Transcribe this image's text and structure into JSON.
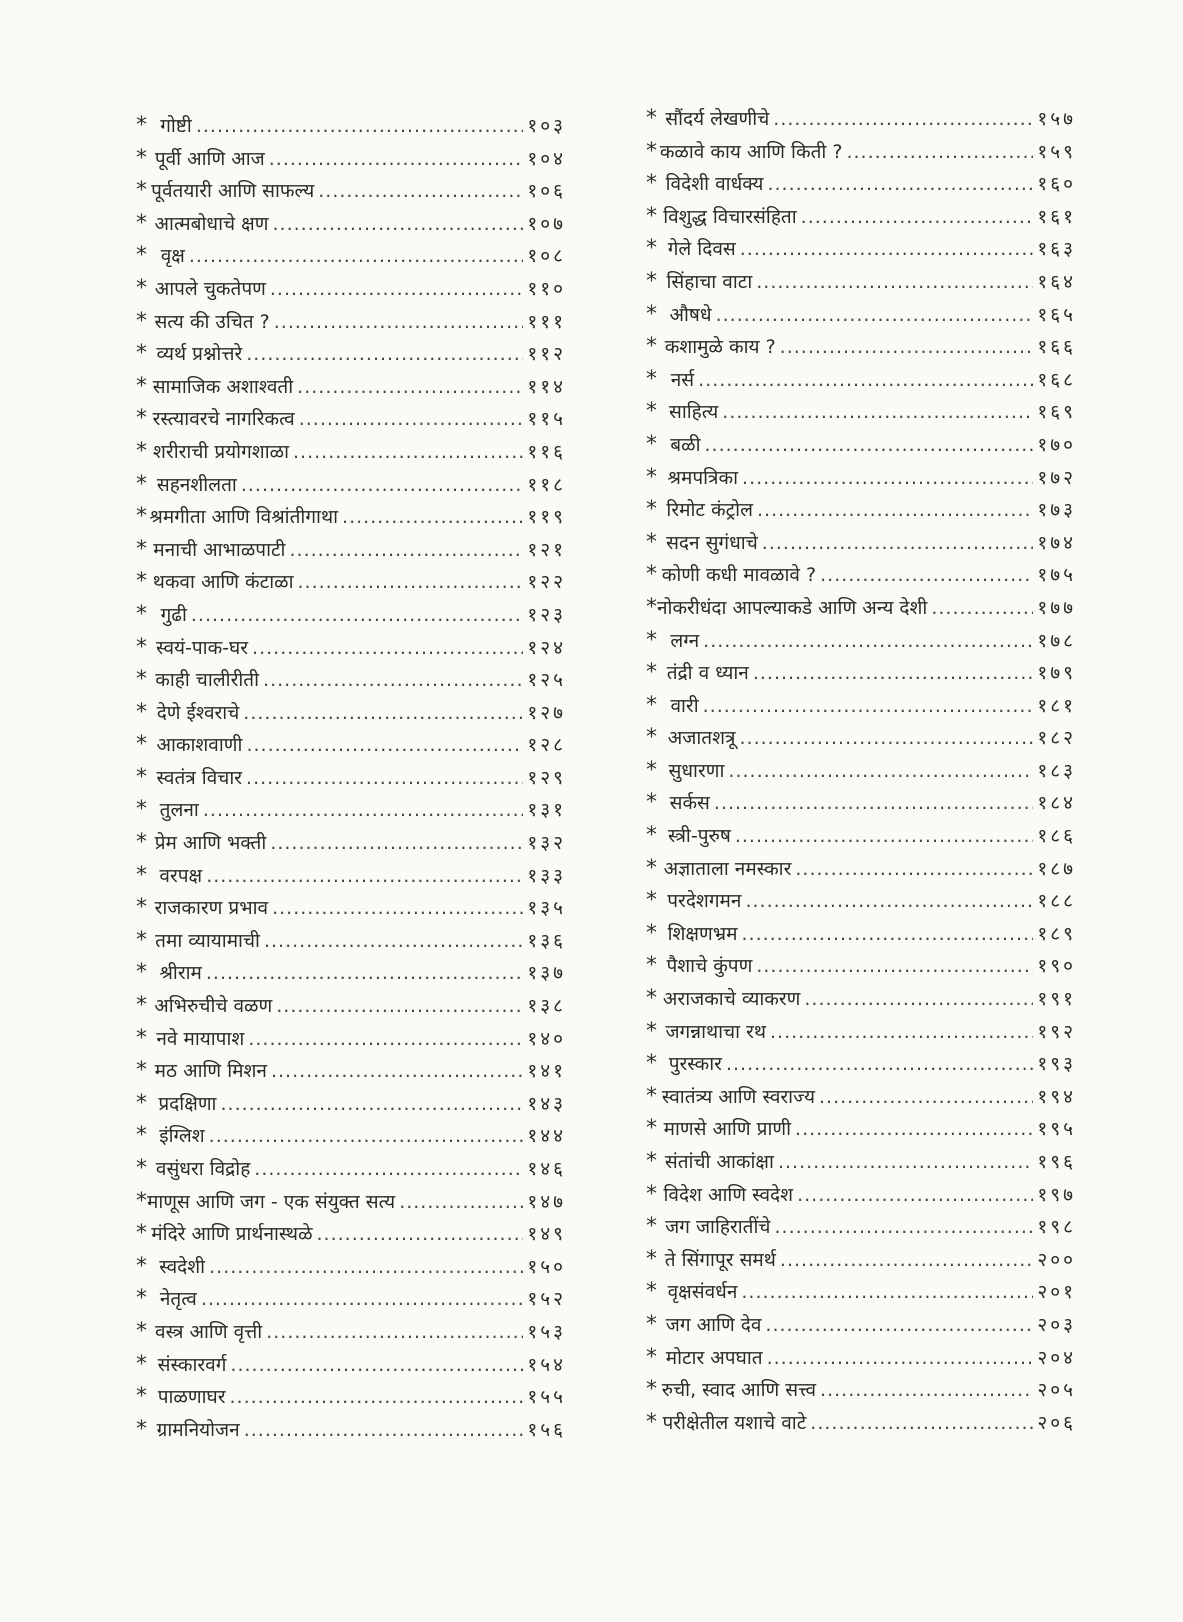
{
  "toc": {
    "bullet": "*",
    "left": [
      {
        "title": "गोष्टी",
        "page": "१०३"
      },
      {
        "title": "पूर्वी आणि आज",
        "page": "१०४"
      },
      {
        "title": "पूर्वतयारी आणि साफल्य",
        "page": "१०६"
      },
      {
        "title": "आत्मबोधाचे क्षण",
        "page": "१०७"
      },
      {
        "title": "वृक्ष",
        "page": "१०८"
      },
      {
        "title": "आपले चुकतेपण",
        "page": "११०"
      },
      {
        "title": "सत्य की उचित ?",
        "page": "१११"
      },
      {
        "title": "व्यर्थ प्रश्नोत्तरे",
        "page": "११२"
      },
      {
        "title": "सामाजिक अशाश्वती",
        "page": "११४"
      },
      {
        "title": "रस्त्यावरचे नागरिकत्व",
        "page": "११५"
      },
      {
        "title": "शरीराची प्रयोगशाळा",
        "page": "११६"
      },
      {
        "title": "सहनशीलता",
        "page": "११८"
      },
      {
        "title": "श्रमगीता आणि विश्रांतीगाथा",
        "page": "११९"
      },
      {
        "title": "मनाची आभाळपाटी",
        "page": "१२१"
      },
      {
        "title": "थकवा आणि कंटाळा",
        "page": "१२२"
      },
      {
        "title": "गुढी",
        "page": "१२३"
      },
      {
        "title": "स्वयं-पाक-घर",
        "page": "१२४"
      },
      {
        "title": "काही चालीरीती",
        "page": "१२५"
      },
      {
        "title": "देणे ईश्वराचे",
        "page": "१२७"
      },
      {
        "title": "आकाशवाणी",
        "page": "१२८"
      },
      {
        "title": "स्वतंत्र विचार",
        "page": "१२९"
      },
      {
        "title": "तुलना",
        "page": "१३१"
      },
      {
        "title": "प्रेम आणि भक्ती",
        "page": "१३२"
      },
      {
        "title": "वरपक्ष",
        "page": "१३३"
      },
      {
        "title": "राजकारण प्रभाव",
        "page": "१३५"
      },
      {
        "title": "तमा व्यायामाची",
        "page": "१३६"
      },
      {
        "title": "श्रीराम",
        "page": "१३७"
      },
      {
        "title": "अभिरुचीचे वळण",
        "page": "१३८"
      },
      {
        "title": "नवे मायापाश",
        "page": "१४०"
      },
      {
        "title": "मठ आणि मिशन",
        "page": "१४१"
      },
      {
        "title": "प्रदक्षिणा",
        "page": "१४३"
      },
      {
        "title": "इंग्लिश",
        "page": "१४४"
      },
      {
        "title": "वसुंधरा विद्रोह",
        "page": "१४६"
      },
      {
        "title": "माणूस आणि जग - एक संयुक्त सत्य",
        "page": "१४७"
      },
      {
        "title": "मंदिरे आणि प्रार्थनास्थळे",
        "page": "१४९"
      },
      {
        "title": "स्वदेशी",
        "page": "१५०"
      },
      {
        "title": "नेतृत्व",
        "page": "१५२"
      },
      {
        "title": "वस्त्र आणि वृत्ती",
        "page": "१५३"
      },
      {
        "title": "संस्कारवर्ग",
        "page": "१५४"
      },
      {
        "title": "पाळणाघर",
        "page": "१५५"
      },
      {
        "title": "ग्रामनियोजन",
        "page": "१५६"
      }
    ],
    "right": [
      {
        "title": "सौंदर्य लेखणीचे",
        "page": "१५७"
      },
      {
        "title": "कळावे काय आणि किती ?",
        "page": "१५९"
      },
      {
        "title": "विदेशी वार्धक्य",
        "page": "१६०"
      },
      {
        "title": "विशुद्ध विचारसंहिता",
        "page": "१६१"
      },
      {
        "title": "गेले दिवस",
        "page": "१६३"
      },
      {
        "title": "सिंहाचा वाटा",
        "page": "१६४"
      },
      {
        "title": "औषधे",
        "page": "१६५"
      },
      {
        "title": "कशामुळे काय ?",
        "page": "१६६"
      },
      {
        "title": "नर्स",
        "page": "१६८"
      },
      {
        "title": "साहित्य",
        "page": "१६९"
      },
      {
        "title": "बळी",
        "page": "१७०"
      },
      {
        "title": "श्रमपत्रिका",
        "page": "१७२"
      },
      {
        "title": "रिमोट कंट्रोल",
        "page": "१७३"
      },
      {
        "title": "सदन सुगंधाचे",
        "page": "१७४"
      },
      {
        "title": "कोणी कधी मावळावे ?",
        "page": "१७५"
      },
      {
        "title": "नोकरीधंदा आपल्याकडे आणि अन्य देशी",
        "page": "१७७"
      },
      {
        "title": "लग्न",
        "page": "१७८"
      },
      {
        "title": "तंद्री व ध्यान",
        "page": "१७९"
      },
      {
        "title": "वारी",
        "page": "१८१"
      },
      {
        "title": "अजातशत्रू",
        "page": "१८२"
      },
      {
        "title": "सुधारणा",
        "page": "१८३"
      },
      {
        "title": "सर्कस",
        "page": "१८४"
      },
      {
        "title": "स्त्री-पुरुष",
        "page": "१८६"
      },
      {
        "title": "अज्ञाताला नमस्कार",
        "page": "१८७"
      },
      {
        "title": "परदेशगमन",
        "page": "१८८"
      },
      {
        "title": "शिक्षणभ्रम",
        "page": "१८९"
      },
      {
        "title": "पैशाचे कुंपण",
        "page": "१९०"
      },
      {
        "title": "अराजकाचे व्याकरण",
        "page": "१९१"
      },
      {
        "title": "जगन्नाथाचा रथ",
        "page": "१९२"
      },
      {
        "title": "पुरस्कार",
        "page": "१९३"
      },
      {
        "title": "स्वातंत्र्य आणि स्वराज्य",
        "page": "१९४"
      },
      {
        "title": "माणसे आणि प्राणी",
        "page": "१९५"
      },
      {
        "title": "संतांची आकांक्षा",
        "page": "१९६"
      },
      {
        "title": "विदेश आणि स्वदेश",
        "page": "१९७"
      },
      {
        "title": "जग जाहिरातींचे",
        "page": "१९८"
      },
      {
        "title": "ते सिंगापूर समर्थ",
        "page": "२००"
      },
      {
        "title": "वृक्षसंवर्धन",
        "page": "२०१"
      },
      {
        "title": "जग आणि देव",
        "page": "२०३"
      },
      {
        "title": "मोटार अपघात",
        "page": "२०४"
      },
      {
        "title": "रुची, स्वाद आणि सत्त्व",
        "page": "२०५"
      },
      {
        "title": "परीक्षेतील यशाचे वाटे",
        "page": "२०६"
      }
    ]
  }
}
